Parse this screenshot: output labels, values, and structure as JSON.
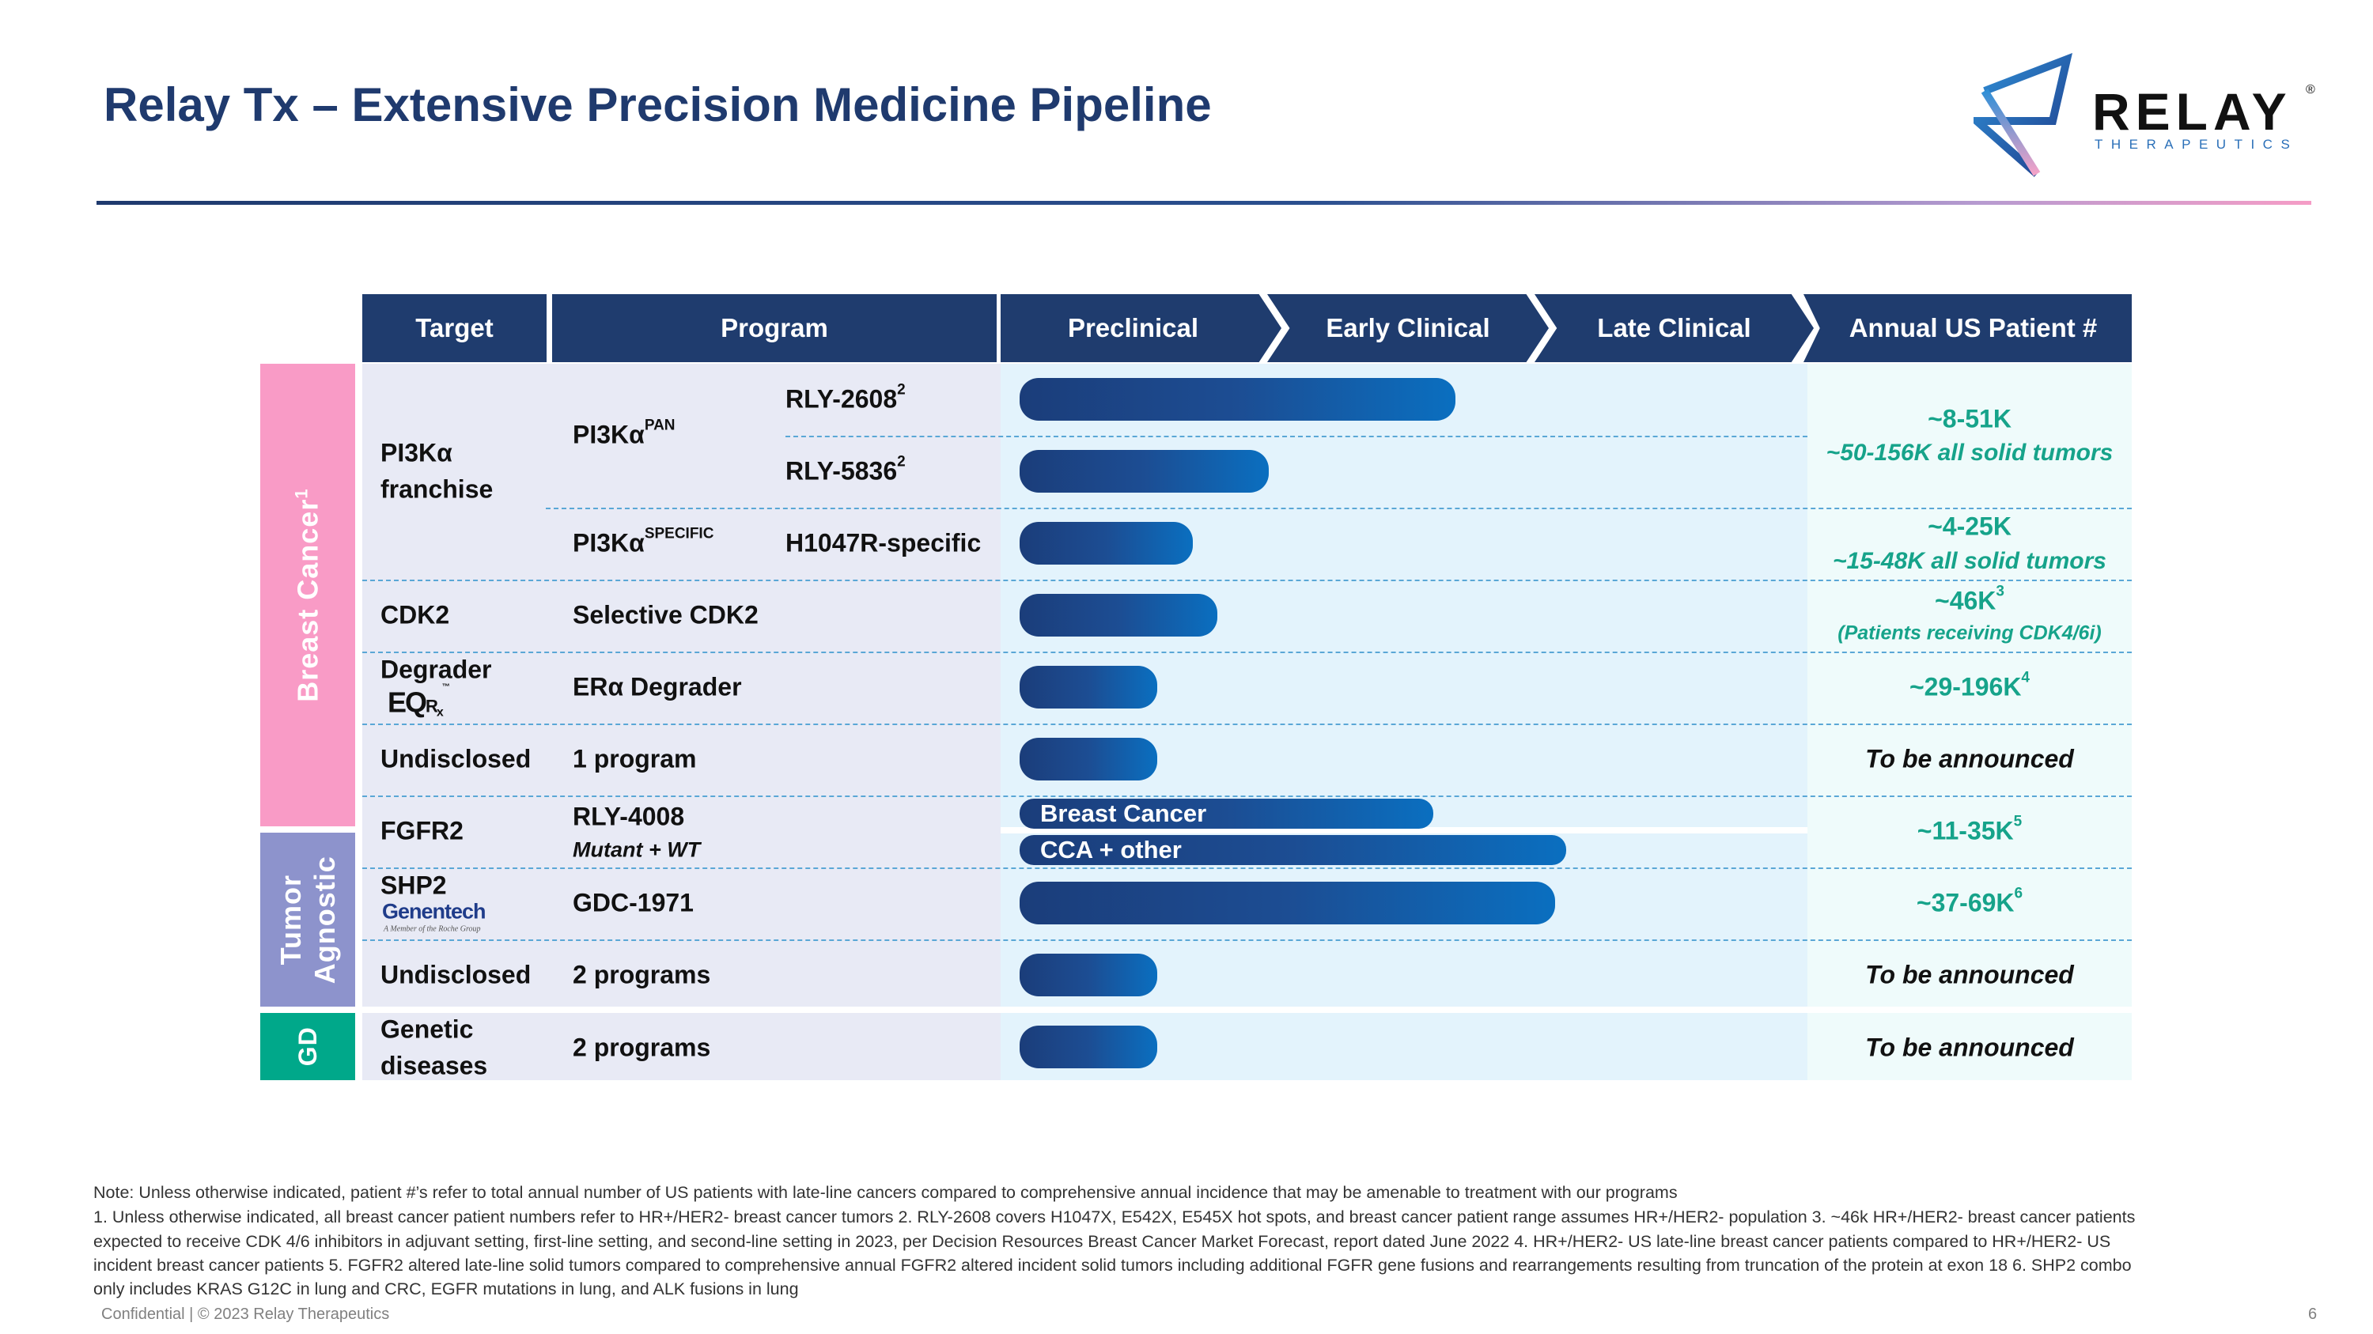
{
  "title": "Relay Tx – Extensive Precision Medicine Pipeline",
  "logo": {
    "wordmark": "RELAY",
    "registered": "®",
    "tagline": "THERAPEUTICS",
    "colors": [
      "#1f3c8a",
      "#2f8fd6",
      "#f5a3c8"
    ]
  },
  "colors": {
    "header": "#1f3c6e",
    "breast_cancer": "#f99bc6",
    "tumor_agnostic": "#8d93cc",
    "genetic_diseases": "#00a88a",
    "patient_numbers": "#16a38a",
    "bar_start": "#1b3d7a",
    "bar_end": "#0a6fc0"
  },
  "headers": {
    "target": "Target",
    "program": "Program",
    "preclinical": "Preclinical",
    "early": "Early Clinical",
    "late": "Late Clinical",
    "annual": "Annual US Patient #"
  },
  "groups": {
    "breast": "Breast Cancer",
    "breast_sup": "1",
    "tumor1": "Tumor",
    "tumor2": "Agnostic",
    "gd": "GD"
  },
  "rows": {
    "pi3k_target1": "PI3Kα",
    "pi3k_target2": "franchise",
    "pan": "PI3Kα",
    "pan_sup": "PAN",
    "specific": "PI3Kα",
    "specific_sup": "SPECIFIC",
    "rly2608": "RLY-2608",
    "rly2608_sup": "2",
    "rly5836": "RLY-5836",
    "rly5836_sup": "2",
    "h1047r": "H1047R-specific",
    "cdk2_target": "CDK2",
    "cdk2_program": "Selective CDK2",
    "degrader_target": "Degrader",
    "eqrx_logo": "EQRx™",
    "degrader_program": "ERα Degrader",
    "undisclosed1_target": "Undisclosed",
    "undisclosed1_program": "1 program",
    "fgfr2_target": "FGFR2",
    "fgfr2_program": "RLY-4008",
    "fgfr2_sub": "Mutant + WT",
    "shp2_target": "SHP2",
    "genentech_logo": "Genentech",
    "genentech_sub": "A Member of the Roche Group",
    "shp2_program": "GDC-1971",
    "undisclosed2_target": "Undisclosed",
    "undisclosed2_program": "2 programs",
    "gd_target1": "Genetic",
    "gd_target2": "diseases",
    "gd_program": "2 programs"
  },
  "bars": {
    "unit": "phases completed (0=start of Preclinical, 1=Early Clinical, 2=Late Clinical)",
    "rly2608": 1.68,
    "rly5836": 0.99,
    "h1047r": 0.71,
    "cdk2": 0.8,
    "degrader": 0.58,
    "undisclosed1": 0.58,
    "fgfr2_breast": 1.6,
    "fgfr2_breast_label": "Breast Cancer",
    "fgfr2_cca": 2.09,
    "fgfr2_cca_label": "CCA + other",
    "shp2": 2.05,
    "undisclosed2": 0.58,
    "gd": 0.58
  },
  "annual": {
    "pan": "~8-51K",
    "pan_sub": "~50-156K all solid tumors",
    "specific": "~4-25K",
    "specific_sub": "~15-48K all solid tumors",
    "cdk2": "~46K",
    "cdk2_sup": "3",
    "cdk2_sub": "(Patients receiving CDK4/6i)",
    "degrader": "~29-196K",
    "degrader_sup": "4",
    "undisclosed1": "To be announced",
    "fgfr2": "~11-35K",
    "fgfr2_sup": "5",
    "shp2": "~37-69K",
    "shp2_sup": "6",
    "undisclosed2": "To be announced",
    "gd": "To be announced"
  },
  "footnotes": [
    "Note: Unless otherwise indicated, patient #’s refer to total annual number of US patients with late-line cancers compared to comprehensive annual incidence that may be amenable to treatment with our programs",
    "1. Unless otherwise indicated, all breast cancer patient numbers refer to HR+/HER2- breast cancer tumors  2. RLY-2608 covers H1047X, E542X, E545X hot spots, and breast cancer patient range assumes HR+/HER2- population  3. ~46k HR+/HER2- breast cancer patients",
    "expected to receive CDK 4/6 inhibitors in adjuvant setting, first-line setting, and second-line setting in 2023, per Decision Resources Breast Cancer Market Forecast, report dated June 2022  4. HR+/HER2- US late-line breast cancer patients compared to HR+/HER2- US",
    "incident breast cancer patients  5. FGFR2 altered late-line solid tumors compared to comprehensive annual FGFR2 altered incident solid tumors including additional FGFR gene fusions and rearrangements resulting from truncation of the protein at exon 18  6. SHP2 combo",
    "only includes KRAS G12C in lung and CRC, EGFR mutations in lung, and ALK fusions in lung"
  ],
  "footer": {
    "confidential": "Confidential | © 2023 Relay Therapeutics",
    "page": "6"
  }
}
